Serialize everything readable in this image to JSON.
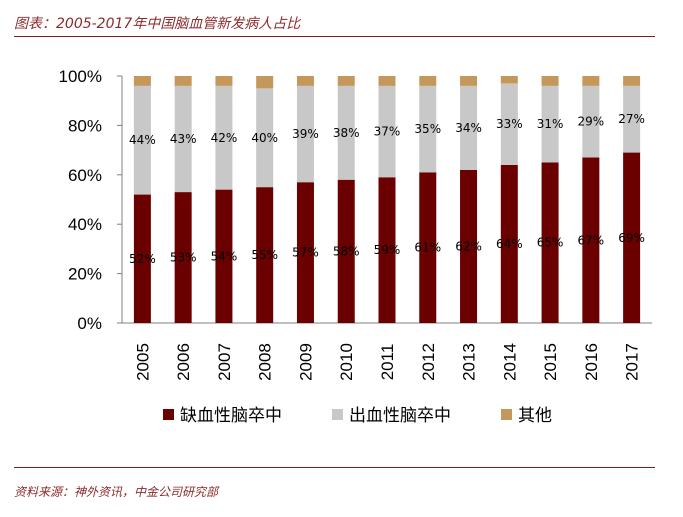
{
  "title": "图表：2005-2017年中国脑血管新发病人占比",
  "source": "资料来源：神外资讯，中金公司研究部",
  "colors": {
    "ischemic": "#6b0000",
    "hemorrhagic": "#c8c8c8",
    "other": "#c4975a",
    "rule": "#7a1e1e",
    "text": "#8b2b2b"
  },
  "chart_data": {
    "type": "bar",
    "stacked": true,
    "title": "2005-2017年中国脑血管新发病人占比",
    "categories": [
      "2005",
      "2006",
      "2007",
      "2008",
      "2009",
      "2010",
      "2011",
      "2012",
      "2013",
      "2014",
      "2015",
      "2016",
      "2017"
    ],
    "series": [
      {
        "name": "缺血性脑卒中",
        "values": [
          52,
          53,
          54,
          55,
          57,
          58,
          59,
          61,
          62,
          64,
          65,
          67,
          69
        ],
        "labels": [
          "52%",
          "53%",
          "54%",
          "55%",
          "57%",
          "58%",
          "59%",
          "61%",
          "62%",
          "64%",
          "65%",
          "67%",
          "69%"
        ]
      },
      {
        "name": "出血性脑卒中",
        "values": [
          44,
          43,
          42,
          40,
          39,
          38,
          37,
          35,
          34,
          33,
          31,
          29,
          27
        ],
        "labels": [
          "44%",
          "43%",
          "42%",
          "40%",
          "39%",
          "38%",
          "37%",
          "35%",
          "34%",
          "33%",
          "31%",
          "29%",
          "27%"
        ]
      },
      {
        "name": "其他",
        "values": [
          4,
          4,
          4,
          5,
          4,
          4,
          4,
          4,
          4,
          3,
          4,
          4,
          4
        ]
      }
    ],
    "ylim": [
      0,
      100
    ],
    "yticks": [
      "0%",
      "20%",
      "40%",
      "60%",
      "80%",
      "100%"
    ],
    "xlabel": "",
    "ylabel": "",
    "legend_position": "bottom",
    "grid": false
  }
}
